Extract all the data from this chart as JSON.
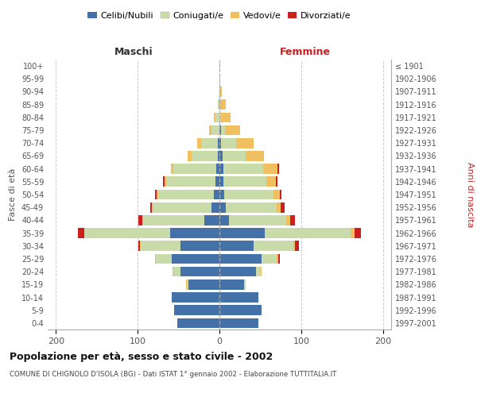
{
  "age_groups": [
    "0-4",
    "5-9",
    "10-14",
    "15-19",
    "20-24",
    "25-29",
    "30-34",
    "35-39",
    "40-44",
    "45-49",
    "50-54",
    "55-59",
    "60-64",
    "65-69",
    "70-74",
    "75-79",
    "80-84",
    "85-89",
    "90-94",
    "95-99",
    "100+"
  ],
  "birth_years": [
    "1997-2001",
    "1992-1996",
    "1987-1991",
    "1982-1986",
    "1977-1981",
    "1972-1976",
    "1967-1971",
    "1962-1966",
    "1957-1961",
    "1952-1956",
    "1947-1951",
    "1942-1946",
    "1937-1941",
    "1932-1936",
    "1927-1931",
    "1922-1926",
    "1917-1921",
    "1912-1916",
    "1907-1911",
    "1902-1906",
    "≤ 1901"
  ],
  "male": {
    "celibi": [
      52,
      55,
      58,
      38,
      48,
      58,
      48,
      60,
      18,
      10,
      7,
      5,
      4,
      2,
      2,
      0,
      0,
      0,
      0,
      0,
      0
    ],
    "coniugati": [
      0,
      0,
      0,
      2,
      8,
      20,
      48,
      105,
      75,
      72,
      68,
      60,
      52,
      32,
      20,
      10,
      5,
      2,
      0,
      0,
      0
    ],
    "vedovi": [
      0,
      0,
      0,
      1,
      1,
      1,
      1,
      0,
      1,
      1,
      2,
      2,
      3,
      5,
      5,
      3,
      2,
      0,
      0,
      0,
      0
    ],
    "divorziati": [
      0,
      0,
      0,
      0,
      0,
      0,
      2,
      8,
      5,
      2,
      2,
      2,
      0,
      0,
      0,
      0,
      0,
      0,
      0,
      0,
      0
    ]
  },
  "female": {
    "nubili": [
      48,
      52,
      48,
      30,
      45,
      52,
      42,
      55,
      12,
      8,
      6,
      5,
      5,
      4,
      2,
      2,
      0,
      0,
      0,
      0,
      0
    ],
    "coniugate": [
      0,
      0,
      0,
      2,
      6,
      18,
      48,
      105,
      70,
      62,
      60,
      52,
      48,
      28,
      18,
      5,
      2,
      0,
      0,
      0,
      0
    ],
    "vedove": [
      0,
      0,
      0,
      0,
      1,
      2,
      2,
      5,
      5,
      5,
      8,
      12,
      18,
      22,
      22,
      18,
      12,
      8,
      3,
      0,
      0
    ],
    "divorziate": [
      0,
      0,
      0,
      0,
      0,
      2,
      5,
      8,
      5,
      5,
      2,
      2,
      2,
      0,
      0,
      0,
      0,
      0,
      0,
      0,
      0
    ]
  },
  "colors": {
    "celibi": "#4472a8",
    "coniugati": "#c8dba8",
    "vedovi": "#f0c060",
    "divorziati": "#cc2020"
  },
  "xlim": 210,
  "title": "Popolazione per età, sesso e stato civile - 2002",
  "subtitle": "COMUNE DI CHIGNOLO D'ISOLA (BG) - Dati ISTAT 1° gennaio 2002 - Elaborazione TUTTITALIA.IT",
  "ylabel_left": "Fasce di età",
  "ylabel_right": "Anni di nascita",
  "xlabel_left": "Maschi",
  "xlabel_right": "Femmine"
}
